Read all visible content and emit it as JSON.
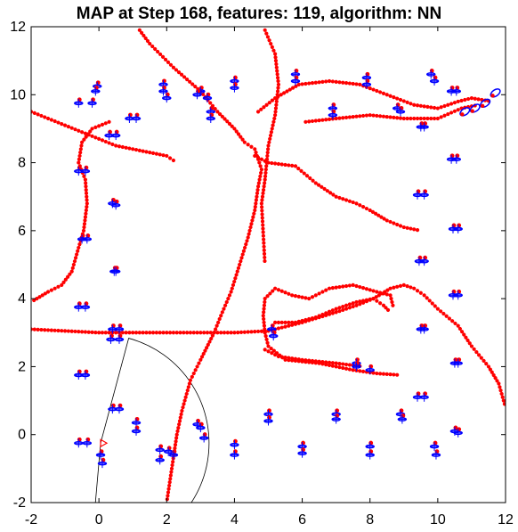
{
  "chart_data": {
    "type": "scatter",
    "title": "MAP at Step 168, features: 119, algorithm: NN",
    "xlabel": "",
    "ylabel": "",
    "xlim": [
      -2,
      12
    ],
    "ylim": [
      -2,
      12
    ],
    "xticks": [
      "-2",
      "0",
      "2",
      "4",
      "6",
      "8",
      "10",
      "12"
    ],
    "yticks": [
      "-2",
      "0",
      "2",
      "4",
      "6",
      "8",
      "10",
      "12"
    ],
    "grid": false,
    "colors": {
      "map": "#ff0000",
      "landmark": "#0000ff",
      "arc": "#000000",
      "robot": "#ff0000"
    },
    "robot": {
      "x": 0.05,
      "y": -0.25,
      "heading_deg": 0
    },
    "sensor_fov": {
      "center": [
        0.05,
        -0.25
      ],
      "radius": 3.2,
      "start_deg": 75,
      "end_deg": -95
    },
    "series": [
      {
        "kind": "map_trails",
        "paths": [
          [
            [
              -2,
              9.5
            ],
            [
              -1,
              9.1
            ],
            [
              0,
              8.7
            ],
            [
              0.5,
              8.5
            ],
            [
              1,
              8.4
            ],
            [
              2,
              8.2
            ],
            [
              2.3,
              8.0
            ]
          ],
          [
            [
              0.3,
              9.2
            ],
            [
              -0.2,
              9.0
            ],
            [
              -0.5,
              8.6
            ],
            [
              -0.6,
              8.0
            ],
            [
              -0.4,
              7.5
            ],
            [
              -0.35,
              6.8
            ],
            [
              -0.45,
              6.0
            ],
            [
              -0.6,
              5.5
            ],
            [
              -0.8,
              4.8
            ],
            [
              -1.1,
              4.4
            ],
            [
              -1.5,
              4.2
            ],
            [
              -2,
              3.9
            ]
          ],
          [
            [
              1.2,
              11.9
            ],
            [
              1.5,
              11.5
            ],
            [
              2.2,
              10.8
            ],
            [
              3.0,
              10.1
            ],
            [
              3.5,
              9.5
            ],
            [
              4.0,
              9.0
            ],
            [
              4.3,
              8.6
            ],
            [
              4.6,
              8.4
            ]
          ],
          [
            [
              4.6,
              8.4
            ],
            [
              4.8,
              7.8
            ],
            [
              4.7,
              7.3
            ],
            [
              4.6,
              6.6
            ],
            [
              4.4,
              5.8
            ],
            [
              4.15,
              5.0
            ],
            [
              3.9,
              4.2
            ],
            [
              3.6,
              3.5
            ],
            [
              3.4,
              3.0
            ],
            [
              3.0,
              2.2
            ],
            [
              2.7,
              1.6
            ],
            [
              2.45,
              0.7
            ],
            [
              2.3,
              0
            ],
            [
              2.15,
              -1.0
            ],
            [
              2.0,
              -2.0
            ]
          ],
          [
            [
              4.9,
              11.9
            ],
            [
              5.2,
              11.2
            ],
            [
              5.3,
              10.3
            ],
            [
              5.2,
              9.4
            ],
            [
              5.0,
              8.5
            ],
            [
              4.9,
              7.5
            ],
            [
              4.8,
              6.8
            ],
            [
              4.9,
              5.0
            ]
          ],
          [
            [
              4.6,
              8.2
            ],
            [
              5.0,
              8.0
            ],
            [
              5.8,
              7.9
            ],
            [
              6.4,
              7.4
            ],
            [
              7.0,
              7.0
            ],
            [
              7.6,
              6.8
            ],
            [
              8.0,
              6.6
            ],
            [
              8.5,
              6.3
            ],
            [
              9.0,
              6.1
            ],
            [
              9.5,
              6.0
            ]
          ],
          [
            [
              4.7,
              9.5
            ],
            [
              5.2,
              9.9
            ],
            [
              5.9,
              10.3
            ],
            [
              6.8,
              10.4
            ],
            [
              7.7,
              10.3
            ],
            [
              8.5,
              10.0
            ],
            [
              9.3,
              9.7
            ],
            [
              10.0,
              9.6
            ],
            [
              10.6,
              9.8
            ],
            [
              11.0,
              9.9
            ],
            [
              11.6,
              9.8
            ]
          ],
          [
            [
              6.1,
              9.2
            ],
            [
              7.0,
              9.3
            ],
            [
              8.0,
              9.4
            ],
            [
              9.0,
              9.3
            ],
            [
              10.0,
              9.3
            ],
            [
              10.7,
              9.6
            ],
            [
              11.2,
              9.7
            ]
          ],
          [
            [
              -2,
              3.1
            ],
            [
              -1,
              3.05
            ],
            [
              0,
              3.0
            ],
            [
              1,
              3.0
            ],
            [
              2,
              3.0
            ],
            [
              3,
              3.0
            ],
            [
              4,
              3.0
            ],
            [
              5,
              3.05
            ],
            [
              6,
              3.3
            ],
            [
              7,
              3.6
            ],
            [
              7.6,
              3.8
            ],
            [
              8.1,
              4.0
            ],
            [
              8.6,
              4.3
            ],
            [
              9.0,
              4.4
            ],
            [
              9.3,
              4.3
            ],
            [
              9.6,
              4.1
            ],
            [
              10.0,
              3.7
            ],
            [
              10.6,
              3.2
            ],
            [
              11.0,
              2.6
            ],
            [
              11.5,
              2.0
            ],
            [
              11.8,
              1.5
            ],
            [
              12,
              0.8
            ]
          ],
          [
            [
              4.9,
              3.0
            ],
            [
              4.85,
              3.5
            ],
            [
              4.9,
              4.0
            ],
            [
              5.2,
              4.3
            ],
            [
              5.7,
              4.1
            ],
            [
              6.2,
              4.0
            ],
            [
              6.8,
              4.3
            ],
            [
              7.5,
              4.4
            ],
            [
              8.2,
              4.2
            ],
            [
              8.6,
              4.1
            ],
            [
              8.7,
              3.7
            ]
          ],
          [
            [
              4.9,
              3.0
            ],
            [
              5.0,
              2.6
            ],
            [
              5.5,
              2.2
            ],
            [
              6.5,
              2.1
            ],
            [
              7.5,
              1.9
            ],
            [
              8.2,
              1.8
            ],
            [
              8.9,
              1.75
            ]
          ],
          [
            [
              5.2,
              3.3
            ],
            [
              5.8,
              3.3
            ],
            [
              6.4,
              3.45
            ],
            [
              7.0,
              3.7
            ],
            [
              7.6,
              3.9
            ],
            [
              8.1,
              4.0
            ],
            [
              8.4,
              3.8
            ],
            [
              8.6,
              3.6
            ]
          ],
          [
            [
              4.9,
              2.5
            ],
            [
              5.3,
              2.3
            ],
            [
              6.0,
              2.2
            ],
            [
              7.0,
              2.1
            ],
            [
              7.8,
              2.0
            ]
          ]
        ]
      },
      {
        "kind": "landmarks",
        "points": [
          [
            -0.6,
            9.75
          ],
          [
            -0.2,
            9.75
          ],
          [
            -0.05,
            10.25
          ],
          [
            -0.1,
            10.1
          ],
          [
            0.3,
            8.8
          ],
          [
            0.5,
            8.8
          ],
          [
            0.9,
            9.3
          ],
          [
            1.1,
            9.3
          ],
          [
            -0.6,
            7.75
          ],
          [
            -0.4,
            7.75
          ],
          [
            0.4,
            6.8
          ],
          [
            0.5,
            6.75
          ],
          [
            -0.5,
            5.75
          ],
          [
            -0.35,
            5.75
          ],
          [
            0.45,
            4.8
          ],
          [
            0.5,
            4.8
          ],
          [
            -0.6,
            3.75
          ],
          [
            -0.4,
            3.75
          ],
          [
            0.4,
            3.1
          ],
          [
            0.6,
            3.1
          ],
          [
            0.35,
            2.8
          ],
          [
            0.6,
            2.8
          ],
          [
            -0.6,
            1.75
          ],
          [
            -0.4,
            1.75
          ],
          [
            0.4,
            0.75
          ],
          [
            0.6,
            0.75
          ],
          [
            1.1,
            0.35
          ],
          [
            1.1,
            0.1
          ],
          [
            -0.6,
            -0.25
          ],
          [
            -0.35,
            -0.25
          ],
          [
            0.05,
            -0.6
          ],
          [
            0.1,
            -0.85
          ],
          [
            1.8,
            -0.45
          ],
          [
            1.8,
            -0.75
          ],
          [
            2.05,
            -0.5
          ],
          [
            2.2,
            -0.6
          ],
          [
            2.9,
            0.3
          ],
          [
            3.0,
            0.2
          ],
          [
            3.1,
            -0.1
          ],
          [
            4.0,
            -0.3
          ],
          [
            4.0,
            -0.6
          ],
          [
            5.0,
            0.6
          ],
          [
            5.0,
            0.4
          ],
          [
            6.0,
            -0.35
          ],
          [
            6.0,
            -0.55
          ],
          [
            7.0,
            0.6
          ],
          [
            7.0,
            0.45
          ],
          [
            8.0,
            -0.35
          ],
          [
            8.0,
            -0.6
          ],
          [
            8.9,
            0.6
          ],
          [
            8.95,
            0.45
          ],
          [
            9.9,
            -0.35
          ],
          [
            9.95,
            -0.6
          ],
          [
            10.5,
            0.1
          ],
          [
            10.6,
            0.05
          ],
          [
            9.4,
            1.1
          ],
          [
            9.6,
            1.1
          ],
          [
            10.5,
            2.1
          ],
          [
            10.6,
            2.1
          ],
          [
            9.5,
            3.1
          ],
          [
            9.6,
            3.1
          ],
          [
            10.45,
            4.1
          ],
          [
            10.6,
            4.1
          ],
          [
            9.45,
            5.1
          ],
          [
            9.6,
            5.1
          ],
          [
            10.45,
            6.05
          ],
          [
            10.6,
            6.05
          ],
          [
            9.4,
            7.05
          ],
          [
            9.6,
            7.05
          ],
          [
            10.4,
            8.1
          ],
          [
            10.55,
            8.1
          ],
          [
            9.5,
            9.05
          ],
          [
            9.6,
            9.05
          ],
          [
            10.4,
            10.1
          ],
          [
            10.55,
            10.1
          ],
          [
            9.8,
            10.6
          ],
          [
            9.9,
            10.4
          ],
          [
            8.8,
            9.6
          ],
          [
            8.9,
            9.5
          ],
          [
            7.9,
            10.5
          ],
          [
            7.9,
            10.3
          ],
          [
            6.9,
            9.6
          ],
          [
            6.9,
            9.4
          ],
          [
            5.8,
            10.6
          ],
          [
            5.8,
            10.4
          ],
          [
            4.0,
            10.4
          ],
          [
            4.0,
            10.2
          ],
          [
            3.0,
            10.1
          ],
          [
            2.9,
            10.0
          ],
          [
            3.2,
            9.9
          ],
          [
            3.3,
            9.5
          ],
          [
            3.3,
            9.3
          ],
          [
            1.9,
            10.3
          ],
          [
            1.9,
            10.1
          ],
          [
            2.0,
            9.9
          ],
          [
            7.6,
            2.1
          ],
          [
            7.6,
            2.0
          ],
          [
            8.0,
            1.9
          ],
          [
            5.1,
            3.1
          ],
          [
            5.15,
            2.9
          ]
        ]
      },
      {
        "kind": "landmark_ellipses",
        "points": [
          [
            10.8,
            9.5
          ],
          [
            11.1,
            9.6
          ],
          [
            11.4,
            9.75
          ],
          [
            11.7,
            10.05
          ]
        ]
      }
    ]
  }
}
